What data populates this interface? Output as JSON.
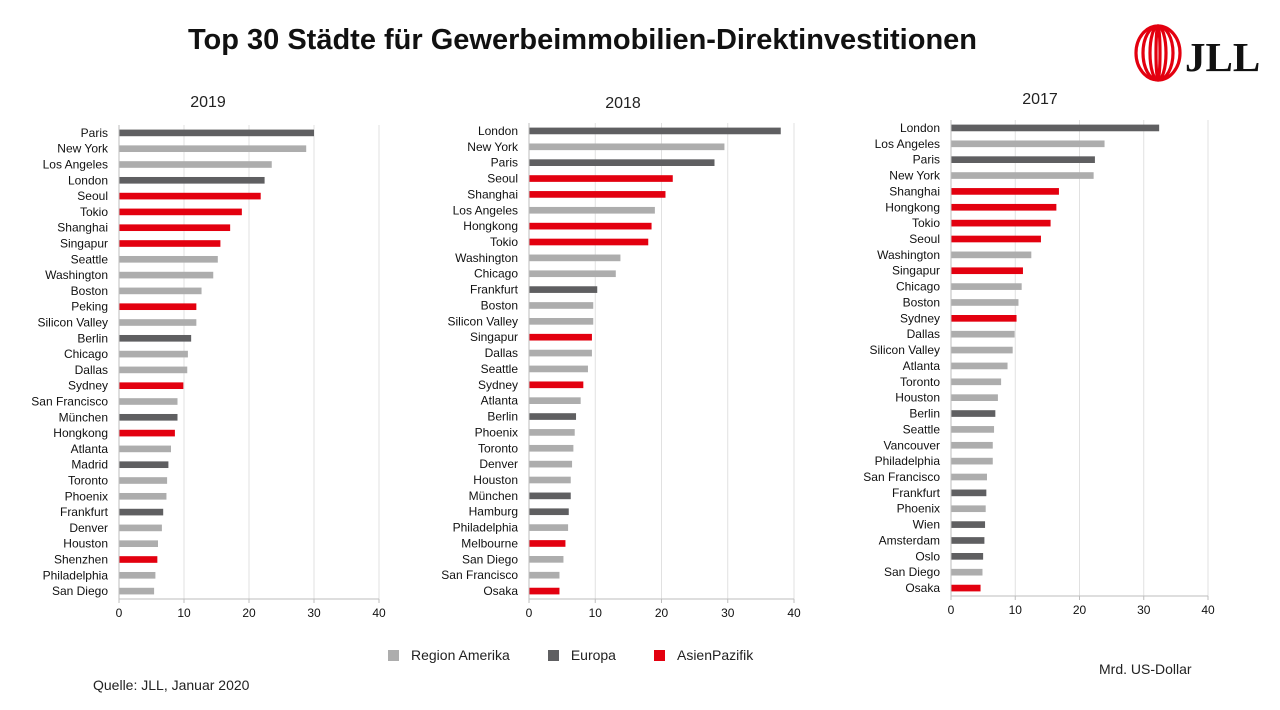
{
  "header": {
    "title": "Top 30 Städte für Gewerbeimmobilien-Direktinvestitionen",
    "logo_text": "JLL"
  },
  "colors": {
    "amerika": "#adadad",
    "europa": "#5f5f61",
    "asien": "#e3000f",
    "axis": "#bdbdbd",
    "grid": "#e1e1e1"
  },
  "legend": [
    {
      "key": "amerika",
      "label": "Region Amerika"
    },
    {
      "key": "europa",
      "label": "Europa"
    },
    {
      "key": "asien",
      "label": "AsienPazifik"
    }
  ],
  "footer": {
    "unit": "Mrd. US-Dollar",
    "source": "Quelle: JLL, Januar 2020"
  },
  "chart_data": [
    {
      "type": "bar",
      "orientation": "horizontal",
      "title": "2019",
      "xlim": [
        0,
        40
      ],
      "xticks": [
        0,
        10,
        20,
        30,
        40
      ],
      "grid": true,
      "categories": [
        "Paris",
        "New York",
        "Los Angeles",
        "London",
        "Seoul",
        "Tokio",
        "Shanghai",
        "Singapur",
        "Seattle",
        "Washington",
        "Boston",
        "Peking",
        "Silicon Valley",
        "Berlin",
        "Chicago",
        "Dallas",
        "Sydney",
        "San Francisco",
        "München",
        "Hongkong",
        "Atlanta",
        "Madrid",
        "Toronto",
        "Phoenix",
        "Frankfurt",
        "Denver",
        "Houston",
        "Shenzhen",
        "Philadelphia",
        "San Diego"
      ],
      "values": [
        30.0,
        28.8,
        23.5,
        22.4,
        21.8,
        18.9,
        17.1,
        15.6,
        15.2,
        14.5,
        12.7,
        11.9,
        11.9,
        11.1,
        10.6,
        10.5,
        9.9,
        9.0,
        9.0,
        8.6,
        8.0,
        7.6,
        7.4,
        7.3,
        6.8,
        6.6,
        6.0,
        5.9,
        5.6,
        5.4
      ],
      "regions": [
        "europa",
        "amerika",
        "amerika",
        "europa",
        "asien",
        "asien",
        "asien",
        "asien",
        "amerika",
        "amerika",
        "amerika",
        "asien",
        "amerika",
        "europa",
        "amerika",
        "amerika",
        "asien",
        "amerika",
        "europa",
        "asien",
        "amerika",
        "europa",
        "amerika",
        "amerika",
        "europa",
        "amerika",
        "amerika",
        "asien",
        "amerika",
        "amerika"
      ]
    },
    {
      "type": "bar",
      "orientation": "horizontal",
      "title": "2018",
      "xlim": [
        0,
        40
      ],
      "xticks": [
        0,
        10,
        20,
        30,
        40
      ],
      "grid": true,
      "categories": [
        "London",
        "New York",
        "Paris",
        "Seoul",
        "Shanghai",
        "Los Angeles",
        "Hongkong",
        "Tokio",
        "Washington",
        "Chicago",
        "Frankfurt",
        "Boston",
        "Silicon Valley",
        "Singapur",
        "Dallas",
        "Seattle",
        "Sydney",
        "Atlanta",
        "Berlin",
        "Phoenix",
        "Toronto",
        "Denver",
        "Houston",
        "München",
        "Hamburg",
        "Philadelphia",
        "Melbourne",
        "San Diego",
        "San Francisco",
        "Osaka"
      ],
      "values": [
        38.0,
        29.5,
        28.0,
        21.7,
        20.6,
        19.0,
        18.5,
        18.0,
        13.8,
        13.1,
        10.3,
        9.7,
        9.7,
        9.5,
        9.5,
        8.9,
        8.2,
        7.8,
        7.1,
        6.9,
        6.7,
        6.5,
        6.3,
        6.3,
        6.0,
        5.9,
        5.5,
        5.2,
        4.6,
        4.6
      ],
      "regions": [
        "europa",
        "amerika",
        "europa",
        "asien",
        "asien",
        "amerika",
        "asien",
        "asien",
        "amerika",
        "amerika",
        "europa",
        "amerika",
        "amerika",
        "asien",
        "amerika",
        "amerika",
        "asien",
        "amerika",
        "europa",
        "amerika",
        "amerika",
        "amerika",
        "amerika",
        "europa",
        "europa",
        "amerika",
        "asien",
        "amerika",
        "amerika",
        "asien"
      ]
    },
    {
      "type": "bar",
      "orientation": "horizontal",
      "title": "2017",
      "xlim": [
        0,
        40
      ],
      "xticks": [
        0,
        10,
        20,
        30,
        40
      ],
      "grid": true,
      "categories": [
        "London",
        "Los Angeles",
        "Paris",
        "New York",
        "Shanghai",
        "Hongkong",
        "Tokio",
        "Seoul",
        "Washington",
        "Singapur",
        "Chicago",
        "Boston",
        "Sydney",
        "Dallas",
        "Silicon Valley",
        "Atlanta",
        "Toronto",
        "Houston",
        "Berlin",
        "Seattle",
        "Vancouver",
        "Philadelphia",
        "San Francisco",
        "Frankfurt",
        "Phoenix",
        "Wien",
        "Amsterdam",
        "Oslo",
        "San Diego",
        "Osaka"
      ],
      "values": [
        32.4,
        23.9,
        22.4,
        22.2,
        16.8,
        16.4,
        15.5,
        14.0,
        12.5,
        11.2,
        11.0,
        10.5,
        10.2,
        9.9,
        9.6,
        8.8,
        7.8,
        7.3,
        6.9,
        6.7,
        6.5,
        6.5,
        5.6,
        5.5,
        5.4,
        5.3,
        5.2,
        5.0,
        4.9,
        4.6
      ],
      "regions": [
        "europa",
        "amerika",
        "europa",
        "amerika",
        "asien",
        "asien",
        "asien",
        "asien",
        "amerika",
        "asien",
        "amerika",
        "amerika",
        "asien",
        "amerika",
        "amerika",
        "amerika",
        "amerika",
        "amerika",
        "europa",
        "amerika",
        "amerika",
        "amerika",
        "amerika",
        "europa",
        "amerika",
        "europa",
        "europa",
        "europa",
        "amerika",
        "asien"
      ]
    }
  ]
}
